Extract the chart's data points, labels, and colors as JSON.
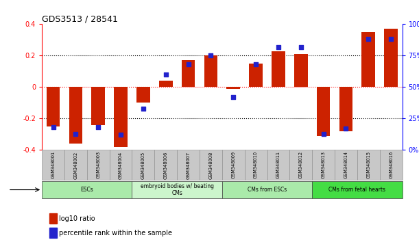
{
  "title": "GDS3513 / 28541",
  "samples": [
    "GSM348001",
    "GSM348002",
    "GSM348003",
    "GSM348004",
    "GSM348005",
    "GSM348006",
    "GSM348007",
    "GSM348008",
    "GSM348009",
    "GSM348010",
    "GSM348011",
    "GSM348012",
    "GSM348013",
    "GSM348014",
    "GSM348015",
    "GSM348016"
  ],
  "log10_ratio": [
    -0.25,
    -0.36,
    -0.24,
    -0.38,
    -0.1,
    0.04,
    0.17,
    0.2,
    -0.01,
    0.15,
    0.23,
    0.21,
    -0.31,
    -0.28,
    0.35,
    0.37
  ],
  "percentile_rank": [
    18,
    13,
    18,
    12,
    33,
    60,
    68,
    75,
    42,
    68,
    82,
    82,
    13,
    17,
    88,
    88
  ],
  "cell_types": [
    {
      "label": "ESCs",
      "start": 0,
      "end": 4,
      "color": "#aaeaaa"
    },
    {
      "label": "embryoid bodies w/ beating\nCMs",
      "start": 4,
      "end": 8,
      "color": "#ccf5cc"
    },
    {
      "label": "CMs from ESCs",
      "start": 8,
      "end": 12,
      "color": "#aaeaaa"
    },
    {
      "label": "CMs from fetal hearts",
      "start": 12,
      "end": 16,
      "color": "#44dd44"
    }
  ],
  "bar_color_red": "#cc2200",
  "bar_color_blue": "#2222cc",
  "ylim_left": [
    -0.4,
    0.4
  ],
  "ylim_right": [
    0,
    100
  ],
  "yticks_left": [
    -0.4,
    -0.2,
    0.0,
    0.2,
    0.4
  ],
  "ytick_labels_left": [
    "-0.4",
    "-0.2",
    "0",
    "0.2",
    "0.4"
  ],
  "yticks_right": [
    0,
    25,
    50,
    75,
    100
  ],
  "ytick_labels_right": [
    "0%",
    "25%",
    "50%",
    "75%",
    "100%"
  ],
  "legend_red": "log10 ratio",
  "legend_blue": "percentile rank within the sample"
}
